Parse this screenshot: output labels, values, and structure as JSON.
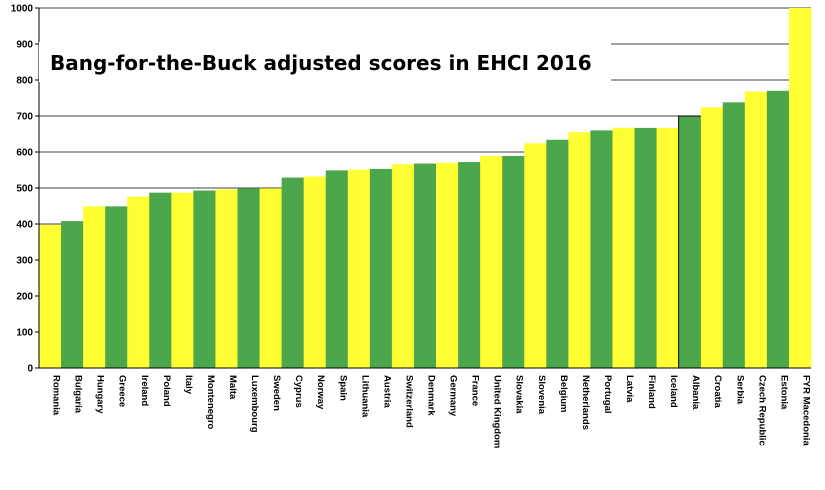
{
  "chart_data": {
    "type": "bar",
    "title": "Bang-for-the-Buck adjusted scores in EHCI 2016",
    "xlabel": "",
    "ylabel": "",
    "ylim": [
      0,
      1000
    ],
    "yticks": [
      0,
      100,
      200,
      300,
      400,
      500,
      600,
      700,
      800,
      900,
      1000
    ],
    "grid": "horizontal",
    "legend": "none",
    "colors": {
      "yellow": "#ffff33",
      "green": "#4ca64c",
      "gridline": "#000000"
    },
    "categories": [
      "Romania",
      "Bulgaria",
      "Hungary",
      "Greece",
      "Ireland",
      "Poland",
      "Italy",
      "Montenegro",
      "Malta",
      "Luxembourg",
      "Sweden",
      "Cyprus",
      "Norway",
      "Spain",
      "Lithuania",
      "Austria",
      "Switzerland",
      "Denmark",
      "Germany",
      "France",
      "United Kingdom",
      "Slovakia",
      "Slovenia",
      "Belgium",
      "Netherlands",
      "Portugal",
      "Latvia",
      "Finland",
      "Iceland",
      "Albania",
      "Croatia",
      "Serbia",
      "Czech Republic",
      "Estonia",
      "FYR Macedonia"
    ],
    "values": [
      398,
      408,
      449,
      449,
      476,
      487,
      487,
      493,
      496,
      499,
      499,
      529,
      532,
      549,
      551,
      553,
      566,
      568,
      570,
      572,
      589,
      589,
      624,
      634,
      655,
      660,
      667,
      667,
      667,
      700,
      724,
      738,
      768,
      770,
      1000
    ],
    "bar_colors": [
      "yellow",
      "green",
      "yellow",
      "green",
      "yellow",
      "green",
      "yellow",
      "green",
      "yellow",
      "green",
      "yellow",
      "green",
      "yellow",
      "green",
      "yellow",
      "green",
      "yellow",
      "green",
      "yellow",
      "green",
      "yellow",
      "green",
      "yellow",
      "green",
      "yellow",
      "green",
      "yellow",
      "green",
      "yellow",
      "green",
      "yellow",
      "green",
      "yellow",
      "green",
      "yellow"
    ]
  }
}
